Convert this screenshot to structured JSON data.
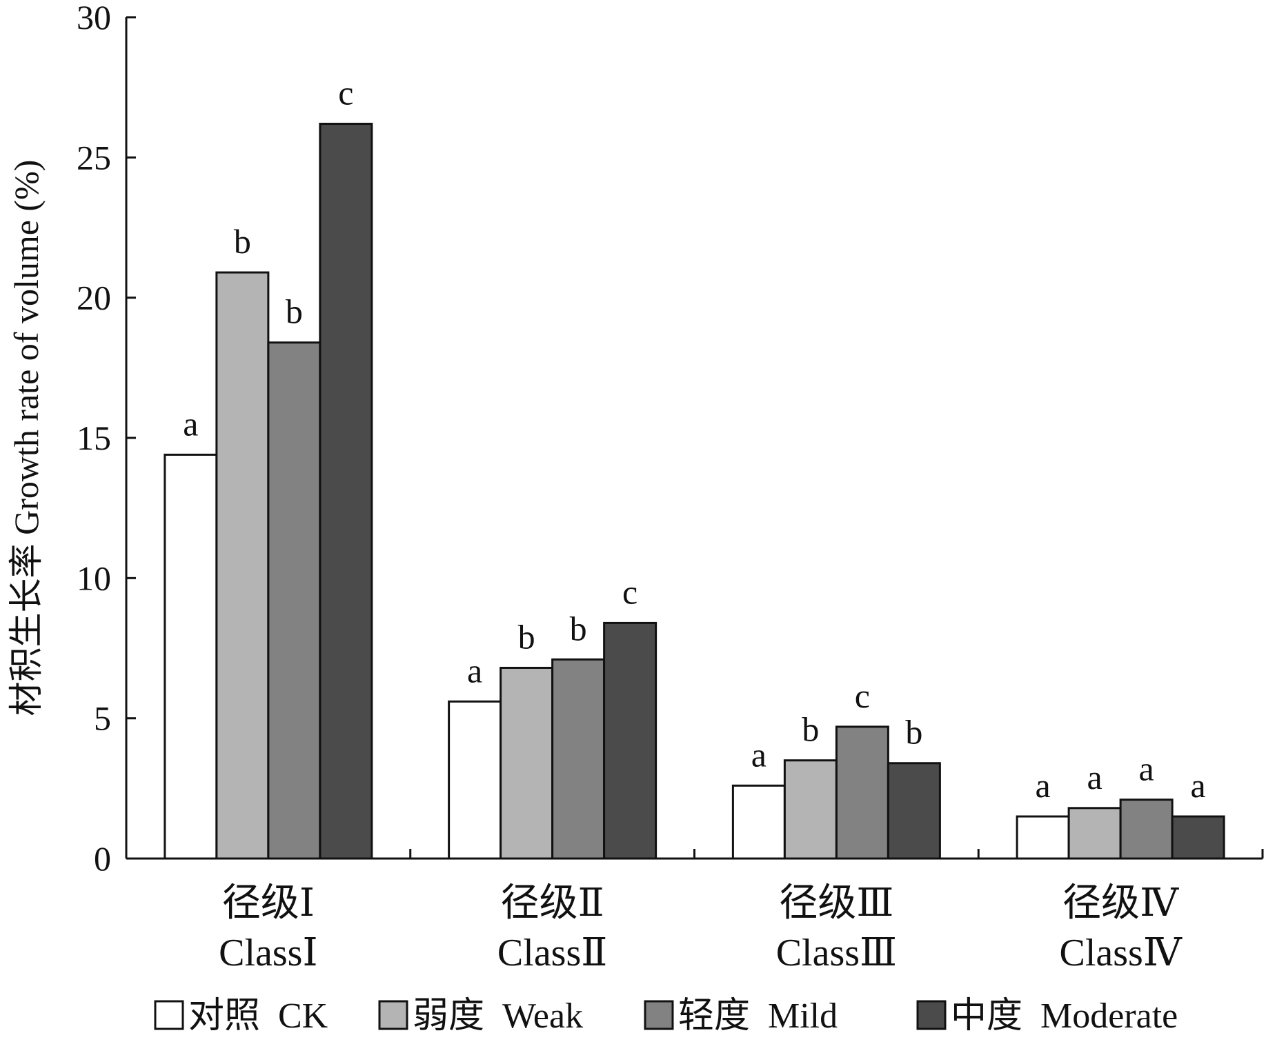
{
  "chart_data": {
    "type": "bar",
    "title": "",
    "ylabel": "材积生长率  Growth rate of volume (%)",
    "xlabel": "",
    "ylim": [
      0,
      30
    ],
    "yticks": [
      0,
      5,
      10,
      15,
      20,
      25,
      30
    ],
    "grid": false,
    "legend_position": "bottom",
    "categories": [
      "径级Ⅰ Class Ⅰ",
      "径级Ⅱ Class Ⅱ",
      "径级Ⅲ Class Ⅲ",
      "径级Ⅳ Class Ⅳ"
    ],
    "category_lines": [
      [
        "径级Ⅰ",
        "ClassⅠ"
      ],
      [
        "径级Ⅱ",
        "ClassⅡ"
      ],
      [
        "径级Ⅲ",
        "ClassⅢ"
      ],
      [
        "径级Ⅳ",
        "ClassⅣ"
      ]
    ],
    "series": [
      {
        "name": "对照  CK",
        "color": "#ffffff",
        "values": [
          14.4,
          5.6,
          2.6,
          1.5
        ],
        "letters": [
          "a",
          "a",
          "a",
          "a"
        ]
      },
      {
        "name": "弱度  Weak",
        "color": "#b4b4b4",
        "values": [
          20.9,
          6.8,
          3.5,
          1.8
        ],
        "letters": [
          "b",
          "b",
          "b",
          "a"
        ]
      },
      {
        "name": "轻度  Mild",
        "color": "#828282",
        "values": [
          18.4,
          7.1,
          4.7,
          2.1
        ],
        "letters": [
          "b",
          "b",
          "c",
          "a"
        ]
      },
      {
        "name": "中度  Moderate",
        "color": "#4b4b4b",
        "values": [
          26.2,
          8.4,
          3.4,
          1.5
        ],
        "letters": [
          "c",
          "c",
          "b",
          "a"
        ]
      }
    ]
  }
}
